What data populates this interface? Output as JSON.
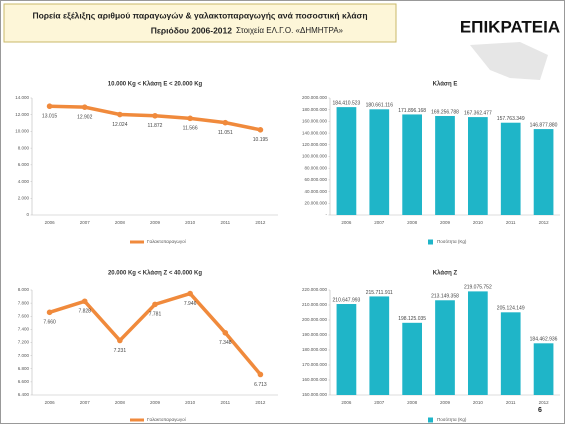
{
  "header": {
    "title": "Πορεία εξέλιξης αριθμού παραγωγών & γαλακτοπαραγωγής ανά ποσοστική κλάση",
    "subtitle": "Περιόδου 2006-2012",
    "source": "Στοιχεία ΕΛ.Γ.Ο. «ΔΗΜΗΤΡΑ»",
    "logo": "ΕΠΙΚΡΑΤΕΙΑ"
  },
  "page_number": "6",
  "chart_data": [
    {
      "type": "line",
      "title": "10.000 Kg < Κλάση Ε < 20.000 Kg",
      "categories": [
        "2006",
        "2007",
        "2008",
        "2009",
        "2010",
        "2011",
        "2012"
      ],
      "series": [
        {
          "name": "Γαλακτοπαραγωγοί",
          "color": "#f08a3c",
          "values": [
            13015,
            12902,
            12024,
            11872,
            11566,
            11051,
            10195
          ],
          "value_labels": [
            "13.015",
            "12.902",
            "12.024",
            "11.872",
            "11.566",
            "11.051",
            "10.195"
          ]
        }
      ],
      "ylim": [
        0,
        14000
      ],
      "yticks": [
        0,
        {
          "value": 2000,
          "label": "2.000"
        },
        {
          "value": 4000,
          "label": "4.000"
        },
        {
          "value": 6000,
          "label": "6.000"
        },
        {
          "value": 8000,
          "label": "8.000"
        },
        {
          "value": 10000,
          "label": "10.000"
        },
        {
          "value": 12000,
          "label": "12.000"
        },
        {
          "value": 14000,
          "label": "14.000"
        }
      ],
      "grid": false
    },
    {
      "type": "bar",
      "title": "Κλάση Ε",
      "categories": [
        "2006",
        "2007",
        "2008",
        "2009",
        "2010",
        "2011",
        "2012"
      ],
      "series": [
        {
          "name": "Ποσότητα (Kg)",
          "color": "#1fb5c8",
          "values": [
            184410523,
            180661116,
            171896168,
            169256788,
            167362477,
            157763349,
            146877880
          ],
          "value_labels": [
            "184.410.523",
            "180.661.116",
            "171.896.168",
            "169.256.788",
            "167.362.477",
            "157.763.349",
            "146.877.880"
          ]
        }
      ],
      "ylim": [
        0,
        200000000
      ],
      "yticks": [
        {
          "value": 0,
          "label": "-"
        },
        {
          "value": 20000000,
          "label": "20.000.000"
        },
        {
          "value": 40000000,
          "label": "40.000.000"
        },
        {
          "value": 60000000,
          "label": "60.000.000"
        },
        {
          "value": 80000000,
          "label": "80.000.000"
        },
        {
          "value": 100000000,
          "label": "100.000.000"
        },
        {
          "value": 120000000,
          "label": "120.000.000"
        },
        {
          "value": 140000000,
          "label": "140.000.000"
        },
        {
          "value": 160000000,
          "label": "160.000.000"
        },
        {
          "value": 180000000,
          "label": "180.000.000"
        },
        {
          "value": 200000000,
          "label": "200.000.000"
        }
      ],
      "grid": false
    },
    {
      "type": "line",
      "title": "20.000 Kg < Κλάση Ζ < 40.000 Kg",
      "categories": [
        "2006",
        "2007",
        "2008",
        "2009",
        "2010",
        "2011",
        "2012"
      ],
      "series": [
        {
          "name": "Γαλακτοπαραγωγοί",
          "color": "#f08a3c",
          "values": [
            7660,
            7828,
            7231,
            7781,
            7946,
            7348,
            6713
          ],
          "value_labels": [
            "7.660",
            "7.828",
            "7.231",
            "7.781",
            "7.946",
            "7.348",
            "6.713"
          ]
        }
      ],
      "ylim": [
        6400,
        8000
      ],
      "yticks": [
        {
          "value": 6400,
          "label": "6.400"
        },
        {
          "value": 6600,
          "label": "6.600"
        },
        {
          "value": 6800,
          "label": "6.800"
        },
        {
          "value": 7000,
          "label": "7.000"
        },
        {
          "value": 7200,
          "label": "7.200"
        },
        {
          "value": 7400,
          "label": "7.400"
        },
        {
          "value": 7600,
          "label": "7.600"
        },
        {
          "value": 7800,
          "label": "7.800"
        },
        {
          "value": 8000,
          "label": "8.000"
        }
      ],
      "grid": false
    },
    {
      "type": "bar",
      "title": "Κλάση Ζ",
      "categories": [
        "2006",
        "2007",
        "2008",
        "2009",
        "2010",
        "2011",
        "2012"
      ],
      "series": [
        {
          "name": "Ποσότητα (Kg)",
          "color": "#1fb5c8",
          "values": [
            210647993,
            215711911,
            198125035,
            213149358,
            219075752,
            205124149,
            184462936
          ],
          "value_labels": [
            "210.647.993",
            "215.711.911",
            "198.125.035",
            "213.149.358",
            "219.075.752",
            "205.124.149",
            "184.462.936"
          ]
        }
      ],
      "ylim": [
        150000000,
        220000000
      ],
      "yticks": [
        {
          "value": 150000000,
          "label": "150.000.000"
        },
        {
          "value": 160000000,
          "label": "160.000.000"
        },
        {
          "value": 170000000,
          "label": "170.000.000"
        },
        {
          "value": 180000000,
          "label": "180.000.000"
        },
        {
          "value": 190000000,
          "label": "190.000.000"
        },
        {
          "value": 200000000,
          "label": "200.000.000"
        },
        {
          "value": 210000000,
          "label": "210.000.000"
        },
        {
          "value": 220000000,
          "label": "220.000.000"
        }
      ],
      "grid": false
    }
  ]
}
